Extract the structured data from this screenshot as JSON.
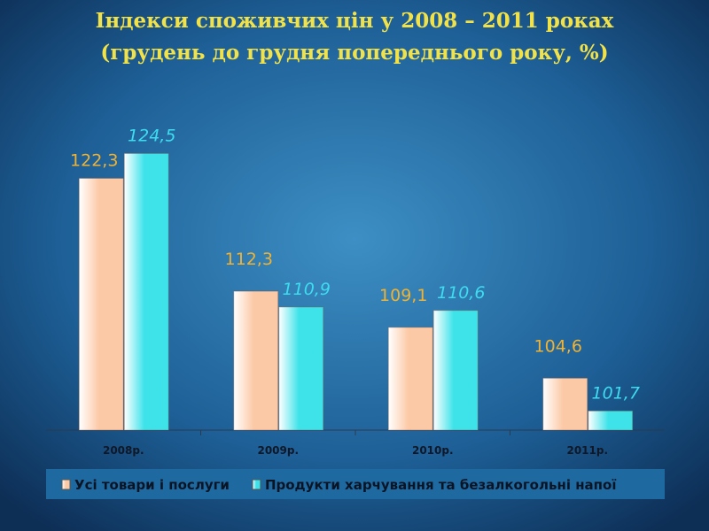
{
  "chart_data": {
    "type": "bar",
    "title": "Індекси споживчих цін у 2008 – 2011 роках",
    "subtitle": "(грудень до грудня попереднього року, %)",
    "categories": [
      "2008р.",
      "2009р.",
      "2010р.",
      "2011р."
    ],
    "series": [
      {
        "name": "Усі товари і послуги",
        "color": "#fcc9a6",
        "label_color": "#f0b233",
        "italic": false,
        "values": [
          122.3,
          112.3,
          109.1,
          104.6
        ],
        "value_labels": [
          "122,3",
          "112,3",
          "109,1",
          "104,6"
        ]
      },
      {
        "name": "Продукти харчування та безалкогольні напої",
        "color": "#3ee3ea",
        "label_color": "#3edcf0",
        "italic": true,
        "values": [
          124.5,
          110.9,
          110.6,
          101.7
        ],
        "value_labels": [
          "124,5",
          "110,9",
          "110,6",
          "101,7"
        ]
      }
    ],
    "ylim": [
      100,
      127
    ]
  }
}
